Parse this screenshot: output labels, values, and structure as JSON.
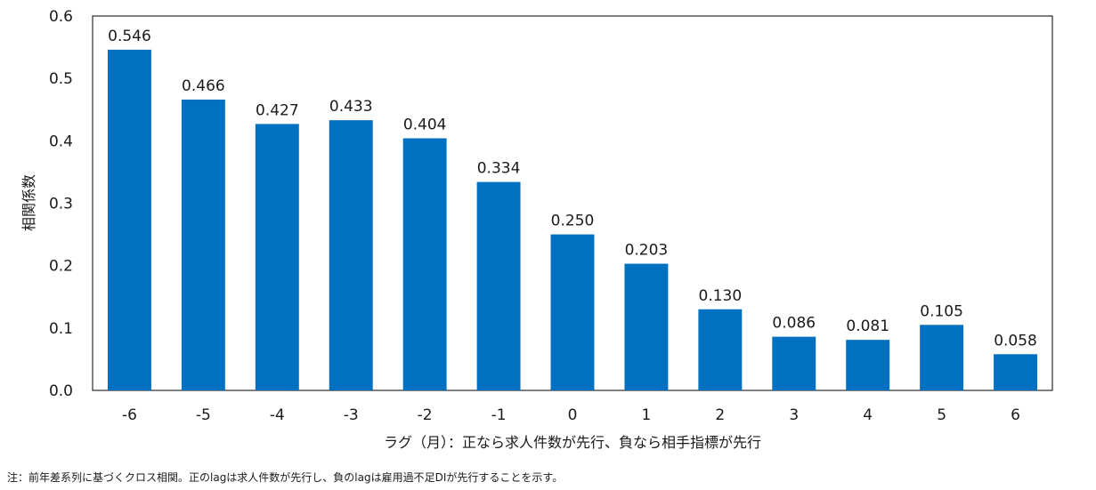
{
  "chart_data": {
    "type": "bar",
    "categories": [
      "-6",
      "-5",
      "-4",
      "-3",
      "-2",
      "-1",
      "0",
      "1",
      "2",
      "3",
      "4",
      "5",
      "6"
    ],
    "values": [
      0.546,
      0.466,
      0.427,
      0.433,
      0.404,
      0.334,
      0.25,
      0.203,
      0.13,
      0.086,
      0.081,
      0.105,
      0.058
    ],
    "data_labels": [
      "0.546",
      "0.466",
      "0.427",
      "0.433",
      "0.404",
      "0.334",
      "0.250",
      "0.203",
      "0.130",
      "0.086",
      "0.081",
      "0.105",
      "0.058"
    ],
    "title": "",
    "xlabel": "ラグ（月）：正なら求人件数が先行、負なら相手指標が先行",
    "ylabel": "相関係数",
    "ylim": [
      0,
      0.6
    ],
    "yticks": [
      "0.0",
      "0.1",
      "0.2",
      "0.3",
      "0.4",
      "0.5",
      "0.6"
    ],
    "grid": false,
    "legend": "none",
    "bar_color": "#0070c0"
  },
  "note": "注：前年差系列に基づくクロス相関。正のlagは求人件数が先行し、負のlagは雇用過不足DIが先行することを示す。"
}
